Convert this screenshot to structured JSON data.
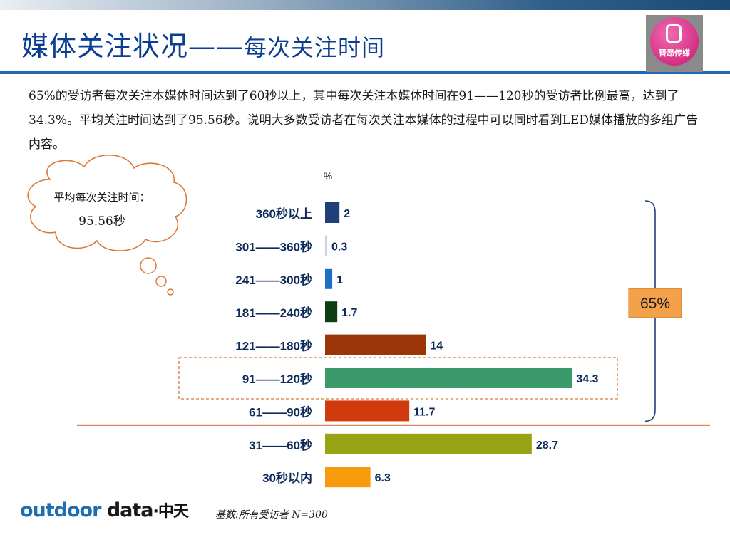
{
  "header": {
    "title_main": "媒体关注状况——",
    "title_sub": "每次关注时间",
    "logo_text": "晋昂传媒"
  },
  "description": "65%的受访者每次关注本媒体时间达到了60秒以上，其中每次关注本媒体时间在91——120秒的受访者比例最高，达到了34.3%。平均关注时间达到了95.56秒。说明大多数受访者在每次关注本媒体的过程中可以同时看到LED媒体播放的多组广告内容。",
  "callout": {
    "label": "平均每次关注时间：",
    "value": "95.56秒"
  },
  "chart_data": {
    "type": "bar",
    "orientation": "horizontal",
    "unit_label": "%",
    "categories": [
      "360秒以上",
      "301——360秒",
      "241——300秒",
      "181——240秒",
      "121——180秒",
      "91——120秒",
      "61——90秒",
      "31——60秒",
      "30秒以内"
    ],
    "values": [
      2,
      0.3,
      1,
      1.7,
      14,
      34.3,
      11.7,
      28.7,
      6.3
    ],
    "value_labels": [
      "2",
      "0.3",
      "1",
      "1.7",
      "14",
      "34.3",
      "11.7",
      "28.7",
      "6.3"
    ],
    "colors": [
      "#1f3f7a",
      "#c9d2ea",
      "#1e6fc4",
      "#0f3d14",
      "#9c3608",
      "#3a9a6a",
      "#cf3b0d",
      "#97a312",
      "#f79b0c"
    ],
    "xlim": [
      0,
      40
    ],
    "highlight_category": "91——120秒",
    "bracket_label": "65%",
    "bracket_color": "#f5a04a",
    "title": "",
    "xlabel": "",
    "ylabel": ""
  },
  "footer": {
    "brand_left": "outdoor",
    "brand_right": "data",
    "brand_cn": "·中天",
    "note": "基数:所有受访者  N=300"
  }
}
